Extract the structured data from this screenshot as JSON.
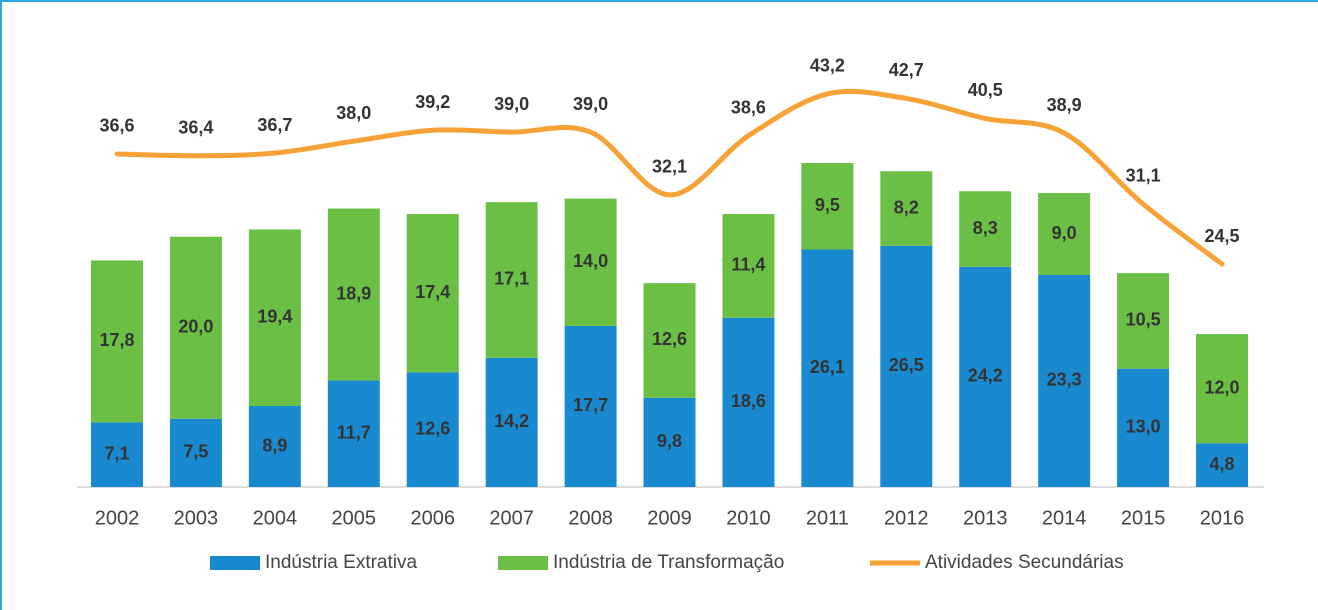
{
  "chart_data": {
    "type": "bar",
    "stacked": true,
    "categories": [
      "2002",
      "2003",
      "2004",
      "2005",
      "2006",
      "2007",
      "2008",
      "2009",
      "2010",
      "2011",
      "2012",
      "2013",
      "2014",
      "2015",
      "2016"
    ],
    "series": [
      {
        "name": "Indústria Extrativa",
        "color": "#1a8ad0",
        "values": [
          7.1,
          7.5,
          8.9,
          11.7,
          12.6,
          14.2,
          17.7,
          9.8,
          18.6,
          26.1,
          26.5,
          24.2,
          23.3,
          13.0,
          4.8
        ],
        "value_labels": [
          "7,1",
          "7,5",
          "8,9",
          "11,7",
          "12,6",
          "14,2",
          "17,7",
          "9,8",
          "18,6",
          "26,1",
          "26,5",
          "24,2",
          "23,3",
          "13,0",
          "4,8"
        ]
      },
      {
        "name": "Indústria de Transformação",
        "color": "#6cbf45",
        "values": [
          17.8,
          20.0,
          19.4,
          18.9,
          17.4,
          17.1,
          14.0,
          12.6,
          11.4,
          9.5,
          8.2,
          8.3,
          9.0,
          10.5,
          12.0
        ],
        "value_labels": [
          "17,8",
          "20,0",
          "19,4",
          "18,9",
          "17,4",
          "17,1",
          "14,0",
          "12,6",
          "11,4",
          "9,5",
          "8,2",
          "8,3",
          "9,0",
          "10,5",
          "12,0"
        ]
      },
      {
        "name": "Atividades Secundárias",
        "color": "#f7a237",
        "type": "line",
        "values": [
          36.6,
          36.4,
          36.7,
          38.0,
          39.2,
          39.0,
          39.0,
          32.1,
          38.6,
          43.2,
          42.7,
          40.5,
          38.9,
          31.1,
          24.5
        ],
        "value_labels": [
          "36,6",
          "36,4",
          "36,7",
          "38,0",
          "39,2",
          "39,0",
          "39,0",
          "32,1",
          "38,6",
          "43,2",
          "42,7",
          "40,5",
          "38,9",
          "31,1",
          "24,5"
        ]
      }
    ],
    "ylim": [
      0,
      50
    ]
  }
}
